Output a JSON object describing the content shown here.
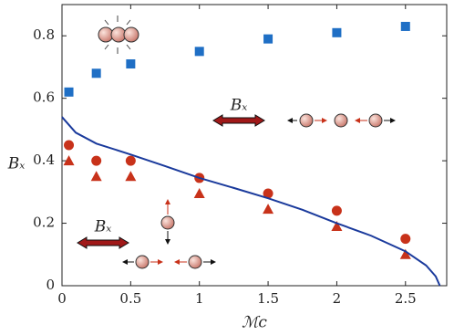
{
  "chart_data": {
    "type": "scatter",
    "xlabel": "ℳc",
    "ylabel": "Bₓ",
    "annotations": [
      "Bₓ",
      "Bₓ"
    ],
    "xlim": [
      0,
      2.8
    ],
    "ylim": [
      0,
      0.9
    ],
    "xticks": [
      0,
      0.5,
      1,
      1.5,
      2,
      2.5
    ],
    "yticks": [
      0,
      0.2,
      0.4,
      0.6,
      0.8
    ],
    "series": [
      {
        "marker": "square",
        "color": "#1f6fc5",
        "x": [
          0.05,
          0.25,
          0.5,
          1,
          1.5,
          2,
          2.5
        ],
        "values": [
          0.62,
          0.68,
          0.71,
          0.75,
          0.79,
          0.81,
          0.83
        ]
      },
      {
        "marker": "circle",
        "color": "#c8321a",
        "x": [
          0.05,
          0.25,
          0.5,
          1,
          1.5,
          2,
          2.5
        ],
        "values": [
          0.45,
          0.4,
          0.4,
          0.345,
          0.295,
          0.24,
          0.15
        ]
      },
      {
        "marker": "triangle",
        "color": "#c8321a",
        "x": [
          0.05,
          0.25,
          0.5,
          1,
          1.5,
          2,
          2.5
        ],
        "values": [
          0.4,
          0.35,
          0.35,
          0.295,
          0.245,
          0.19,
          0.1
        ]
      },
      {
        "marker": "line",
        "color": "#1a3a9c",
        "x": [
          0,
          0.1,
          0.25,
          0.5,
          0.75,
          1,
          1.25,
          1.5,
          1.75,
          2,
          2.25,
          2.5,
          2.65,
          2.72,
          2.75
        ],
        "values": [
          0.54,
          0.49,
          0.455,
          0.42,
          0.383,
          0.345,
          0.313,
          0.28,
          0.243,
          0.2,
          0.16,
          0.11,
          0.065,
          0.03,
          0
        ]
      }
    ]
  }
}
